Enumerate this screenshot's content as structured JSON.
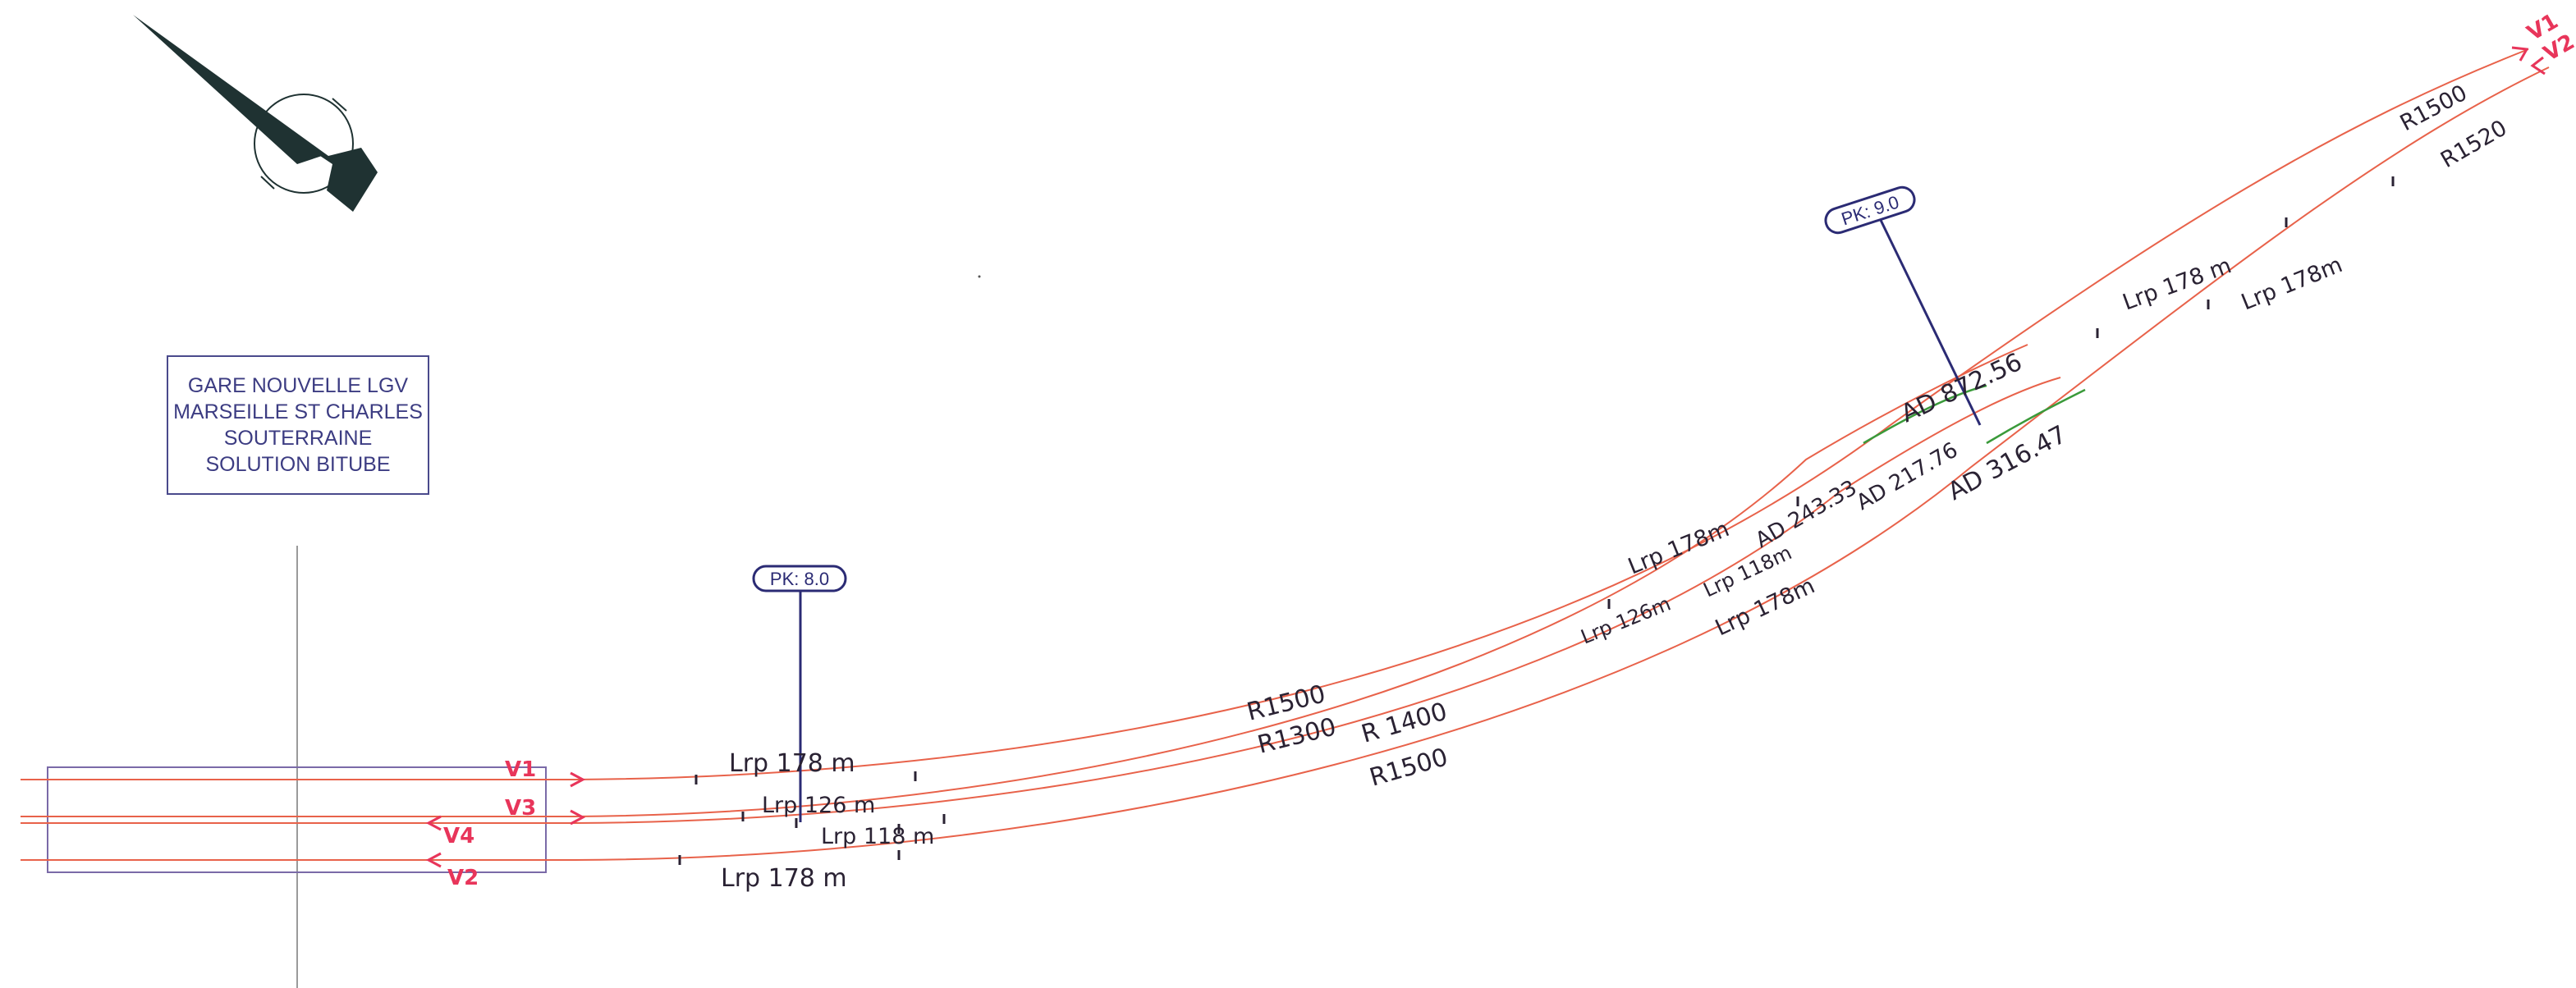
{
  "title_block": {
    "lines": [
      "GARE NOUVELLE LGV",
      "MARSEILLE ST CHARLES",
      "SOUTERRAINE",
      "SOLUTION BITUBE"
    ]
  },
  "pk_markers": [
    {
      "label": "PK:  8.0"
    },
    {
      "label": "PK:  9.0"
    }
  ],
  "track_labels": {
    "left": [
      "V1",
      "V3",
      "V4",
      "V2"
    ],
    "right": [
      "V1",
      "V2"
    ]
  },
  "annotations": {
    "lrp_178_v1": "Lrp 178 m",
    "lrp_126_v3": "Lrp 126 m",
    "lrp_118_v4": "Lrp 118 m",
    "lrp_178_v2": "Lrp 178 m",
    "r1500_v1": "R1500",
    "r1300_v3": "R1300",
    "r1400_v4": "R 1400",
    "r1500_v2": "R1500",
    "lrp_178_mid_v1": "Lrp 178m",
    "lrp_126_mid_v3": "Lrp 126m",
    "lrp_118_mid_v4": "Lrp 118m",
    "lrp_178_mid_v2": "Lrp 178m",
    "ad_243": "AD 243.33",
    "ad_217": "AD 217.76",
    "ad_872": "AD 872.56",
    "ad_316": "AD 316.47",
    "lrp_178_far_v1": "Lrp 178 m",
    "lrp_178_far_v2": "Lrp 178m",
    "r1500_far": "R1500",
    "r1520_far": "R1520"
  },
  "colors": {
    "track": "#e8624a",
    "green_segment": "#3a9a3a",
    "pk_line": "#2b2b74",
    "label_red": "#e8355a",
    "north_arrow": "#1f3232"
  },
  "icons": {
    "north_arrow": "north-arrow-icon"
  }
}
